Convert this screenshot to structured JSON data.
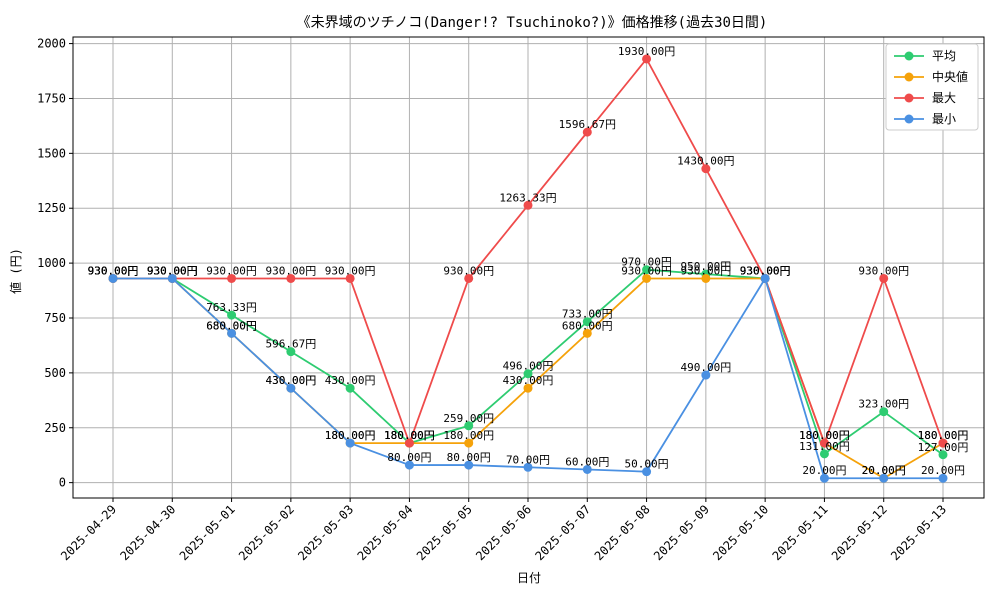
{
  "chart_data": {
    "type": "line",
    "title": "《未界域のツチノコ(Danger!? Tsuchinoko?)》価格推移(過去30日間)",
    "xlabel": "日付",
    "ylabel": "値 (円)",
    "ylim": [
      -70,
      2030
    ],
    "yticks": [
      0,
      250,
      500,
      750,
      1000,
      1250,
      1500,
      1750,
      2000
    ],
    "yticks_labels": [
      "0",
      "250",
      "500",
      "750",
      "1000",
      "1250",
      "1500",
      "1750",
      "2000"
    ],
    "grid": true,
    "legend_position": "top-right",
    "categories": [
      "2025-04-29",
      "2025-04-30",
      "2025-05-01",
      "2025-05-02",
      "2025-05-03",
      "2025-05-04",
      "2025-05-05",
      "2025-05-06",
      "2025-05-07",
      "2025-05-08",
      "2025-05-09",
      "2025-05-10",
      "2025-05-11",
      "2025-05-12",
      "2025-05-13"
    ],
    "series": [
      {
        "name": "平均",
        "color": "#2ecc71",
        "values": [
          930,
          930,
          763.33,
          596.67,
          430,
          180,
          259,
          496,
          733,
          970,
          950,
          930,
          131,
          323,
          127
        ],
        "labels": [
          "930.00円",
          "930.00円",
          "763.33円",
          "596.67円",
          "430.00円",
          "180.00円",
          "259.00円",
          "496.00円",
          "733.00円",
          "970.00円",
          "950.00円",
          "930.00円",
          "131.00円",
          "323.00円",
          "127.00円"
        ]
      },
      {
        "name": "中央値",
        "color": "#f5a20a",
        "values": [
          930,
          930,
          680,
          430,
          180,
          180,
          180,
          430,
          680,
          930,
          930,
          930,
          180,
          20,
          180
        ],
        "labels": [
          "930.00円",
          "930.00円",
          "680.00円",
          "430.00円",
          "180.00円",
          "180.00円",
          "180.00円",
          "430.00円",
          "680.00円",
          "930.00円",
          "930.00円",
          "930.00円",
          "180.00円",
          "20.00円",
          "180.00円"
        ]
      },
      {
        "name": "最大",
        "color": "#ef4b4b",
        "values": [
          930,
          930,
          930,
          930,
          930,
          180,
          930,
          1263.33,
          1596.67,
          1930,
          1430,
          930,
          180,
          930,
          180
        ],
        "labels": [
          "930.00円",
          "930.00円",
          "930.00円",
          "930.00円",
          "930.00円",
          "180.00円",
          "930.00円",
          "1263.33円",
          "1596.67円",
          "1930.00円",
          "1430.00円",
          "930.00円",
          "180.00円",
          "930.00円",
          "180.00円"
        ]
      },
      {
        "name": "最小",
        "color": "#4a90e2",
        "values": [
          930,
          930,
          680,
          430,
          180,
          80,
          80,
          70,
          60,
          50,
          490,
          930,
          20,
          20,
          20
        ],
        "labels": [
          "930.00円",
          "930.00円",
          "680.00円",
          "430.00円",
          "180.00円",
          "80.00円",
          "80.00円",
          "70.00円",
          "60.00円",
          "50.00円",
          "490.00円",
          "930.00円",
          "20.00円",
          "20.00円",
          "20.00円"
        ]
      }
    ]
  }
}
